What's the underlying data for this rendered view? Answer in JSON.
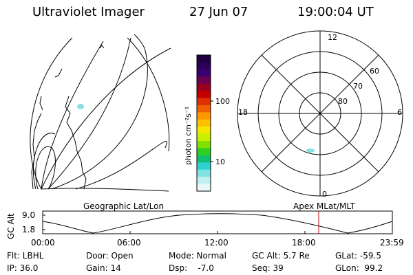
{
  "header": {
    "instrument": "Ultraviolet Imager",
    "date": "27 Jun 07",
    "time": "19:00:04 UT"
  },
  "colorbar": {
    "unit_label": "photon cm⁻²s⁻¹",
    "tick_labels": [
      "100",
      "10"
    ],
    "colors": [
      "#200040",
      "#2a0058",
      "#3a0070",
      "#6a0050",
      "#9a0020",
      "#c40000",
      "#e03000",
      "#f06000",
      "#ff9800",
      "#ffc000",
      "#f4e800",
      "#c8f000",
      "#80e000",
      "#30d020",
      "#10c070",
      "#30d0d0",
      "#80e4e4",
      "#c0f0f0",
      "#e8f8f8"
    ]
  },
  "left_panel": {
    "caption": "Geographic Lat/Lon"
  },
  "right_panel": {
    "caption": "Apex MLat/MLT",
    "mlt_labels": {
      "top": "12",
      "left": "18",
      "right": "6",
      "bottom": "0"
    },
    "lat_labels": [
      "60",
      "70",
      "80"
    ]
  },
  "altitude_plot": {
    "label": "GC Alt",
    "ymax": "9.0",
    "ymin": "1.8",
    "time_labels": [
      "00:00",
      "06:00",
      "12:00",
      "18:00",
      "23:59"
    ],
    "marker_color": "#c00000"
  },
  "status": {
    "flt": "Flt: LBHL",
    "ip": "IP: 36.0",
    "door": "Door: Open",
    "gain": "Gain: 14",
    "mode": "Mode: Normal",
    "dsp": "Dsp:    -7.0",
    "gc_alt": "GC Alt: 5.7 Re",
    "seq": "Seq: 39",
    "glat": "GLat: -59.5",
    "glon": "GLon:  99.2"
  }
}
